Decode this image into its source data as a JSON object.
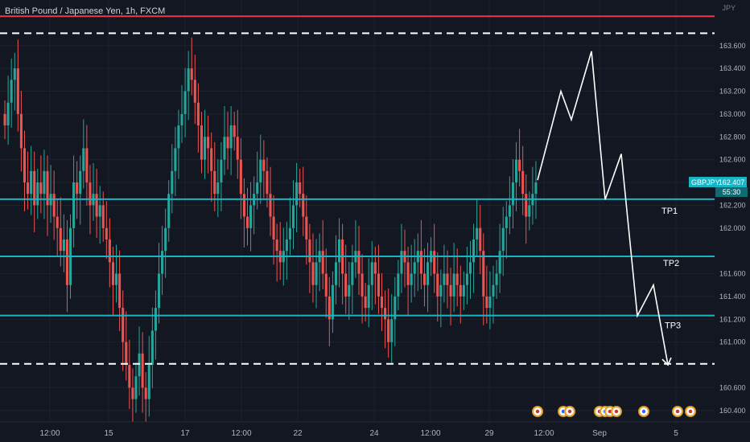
{
  "header": {
    "title": "British Pound / Japanese Yen, 1h, FXCM",
    "currency": "JPY"
  },
  "colors": {
    "background": "#131722",
    "up": "#26a69a",
    "down": "#ef5350",
    "level_line": "#19b5c4",
    "red_line": "#f23645",
    "dashed": "#ffffff",
    "projection": "#ffffff"
  },
  "chart_data": {
    "type": "candlestick",
    "ylim": [
      160.3,
      164.0
    ],
    "y_ticks": [
      160.4,
      160.6,
      161.0,
      161.2,
      161.4,
      161.6,
      162.0,
      162.2,
      162.4,
      162.6,
      162.8,
      163.0,
      163.2,
      163.4,
      163.6
    ],
    "x_labels": [
      "12:00",
      "15",
      "17",
      "12:00",
      "22",
      "24",
      "12:00",
      "29",
      "12:00",
      "Sep",
      "5"
    ],
    "symbol_badge": {
      "label": "GBPJPY",
      "price": "162.407",
      "countdown": "55:30"
    },
    "levels": [
      {
        "price": 163.857,
        "label": "163.857",
        "style": "solid",
        "color": "red"
      },
      {
        "price": 163.708,
        "label": "163.708",
        "style": "dashed",
        "color": "white"
      },
      {
        "price": 162.253,
        "label": "162.253",
        "style": "solid",
        "color": "teal",
        "tag": "TP1"
      },
      {
        "price": 161.752,
        "label": "161.752",
        "style": "solid",
        "color": "teal",
        "tag": "TP2"
      },
      {
        "price": 161.233,
        "label": "161.233",
        "style": "solid",
        "color": "teal",
        "tag": "TP3"
      },
      {
        "price": 160.809,
        "label": "160.809",
        "style": "dashed",
        "color": "white"
      }
    ],
    "projection_path": [
      162.42,
      163.2,
      162.95,
      163.55,
      162.25,
      162.65,
      161.23,
      161.5,
      160.8
    ],
    "candles_close": [
      162.9,
      163.1,
      163.3,
      163.4,
      163.0,
      162.7,
      162.4,
      162.3,
      162.5,
      162.2,
      162.4,
      162.3,
      162.5,
      162.2,
      162.3,
      162.1,
      162.0,
      161.8,
      161.9,
      161.5,
      162.0,
      162.4,
      162.3,
      162.5,
      162.7,
      162.4,
      162.2,
      162.3,
      162.1,
      162.2,
      162.0,
      161.9,
      161.7,
      161.5,
      161.6,
      161.3,
      161.0,
      160.8,
      160.6,
      160.5,
      160.7,
      160.9,
      160.6,
      160.5,
      160.8,
      161.1,
      161.3,
      161.6,
      161.8,
      162.0,
      162.3,
      162.5,
      162.7,
      162.9,
      163.0,
      163.2,
      163.4,
      163.3,
      163.1,
      162.9,
      162.6,
      162.8,
      162.7,
      162.5,
      162.3,
      162.4,
      162.6,
      162.8,
      162.7,
      162.9,
      162.8,
      162.6,
      162.3,
      162.1,
      162.0,
      162.2,
      162.3,
      162.4,
      162.6,
      162.5,
      162.3,
      162.1,
      161.9,
      161.8,
      161.7,
      161.8,
      161.9,
      162.0,
      162.2,
      162.4,
      162.3,
      162.1,
      161.9,
      161.7,
      161.5,
      161.7,
      161.8,
      161.6,
      161.4,
      161.2,
      161.5,
      161.7,
      161.9,
      161.6,
      161.4,
      161.5,
      161.7,
      161.8,
      161.6,
      161.4,
      161.3,
      161.5,
      161.7,
      161.6,
      161.4,
      161.3,
      161.2,
      161.0,
      161.2,
      161.4,
      161.6,
      161.8,
      161.7,
      161.5,
      161.6,
      161.7,
      161.8,
      161.6,
      161.5,
      161.7,
      161.8,
      161.6,
      161.4,
      161.5,
      161.6,
      161.5,
      161.4,
      161.6,
      161.5,
      161.4,
      161.5,
      161.6,
      161.7,
      161.9,
      162.0,
      161.8,
      161.4,
      161.3,
      161.4,
      161.5,
      161.6,
      161.8,
      162.0,
      162.1,
      162.2,
      162.4,
      162.6,
      162.5,
      162.3,
      162.1,
      162.2,
      162.3,
      162.4
    ]
  }
}
